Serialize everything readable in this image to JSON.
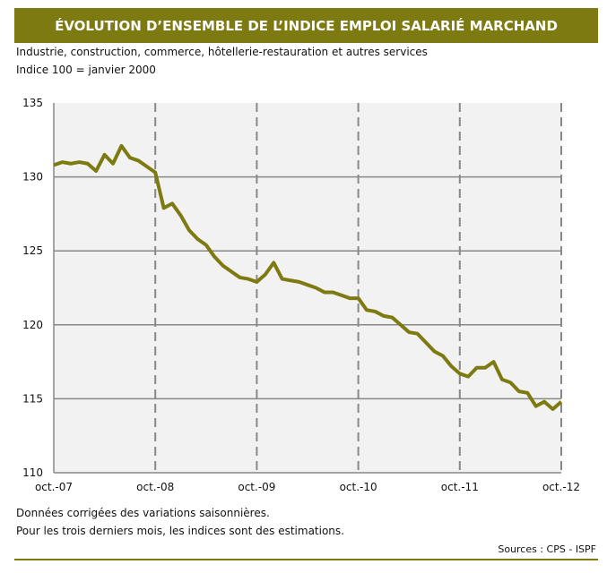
{
  "title": "ÉVOLUTION D’ENSEMBLE DE L’INDICE EMPLOI SALARIÉ MARCHAND",
  "subtitle": "Industrie, construction, commerce, hôtellerie-restauration et autres services",
  "base_note": "Indice 100 = janvier 2000",
  "notes": [
    "Données corrigées des variations saisonnières.",
    "Pour les trois derniers mois, les indices sont des estimations."
  ],
  "source": "Sources : CPS - ISPF",
  "chart_data": {
    "type": "line",
    "x_start": "oct.-07",
    "x_frequency": "monthly",
    "xtick_labels": [
      "oct.-07",
      "oct.-08",
      "oct.-09",
      "oct.-10",
      "oct.-11",
      "oct.-12"
    ],
    "ytick_labels": [
      "110",
      "115",
      "120",
      "125",
      "130",
      "135"
    ],
    "ylim": [
      110,
      135
    ],
    "grid": {
      "horizontal": "solid",
      "vertical": "dashed"
    },
    "color": "#7d7a12",
    "values": [
      130.8,
      131.0,
      130.9,
      131.0,
      130.9,
      130.4,
      131.5,
      130.9,
      132.1,
      131.3,
      131.1,
      130.7,
      130.3,
      127.9,
      128.2,
      127.4,
      126.4,
      125.8,
      125.4,
      124.6,
      124.0,
      123.6,
      123.2,
      123.1,
      122.9,
      123.4,
      124.2,
      123.1,
      123.0,
      122.9,
      122.7,
      122.5,
      122.2,
      122.2,
      122.0,
      121.8,
      121.8,
      121.0,
      120.9,
      120.6,
      120.5,
      120.0,
      119.5,
      119.4,
      118.8,
      118.2,
      117.9,
      117.2,
      116.7,
      116.5,
      117.1,
      117.1,
      117.5,
      116.3,
      116.1,
      115.5,
      115.4,
      114.5,
      114.8,
      114.3,
      114.8
    ]
  }
}
